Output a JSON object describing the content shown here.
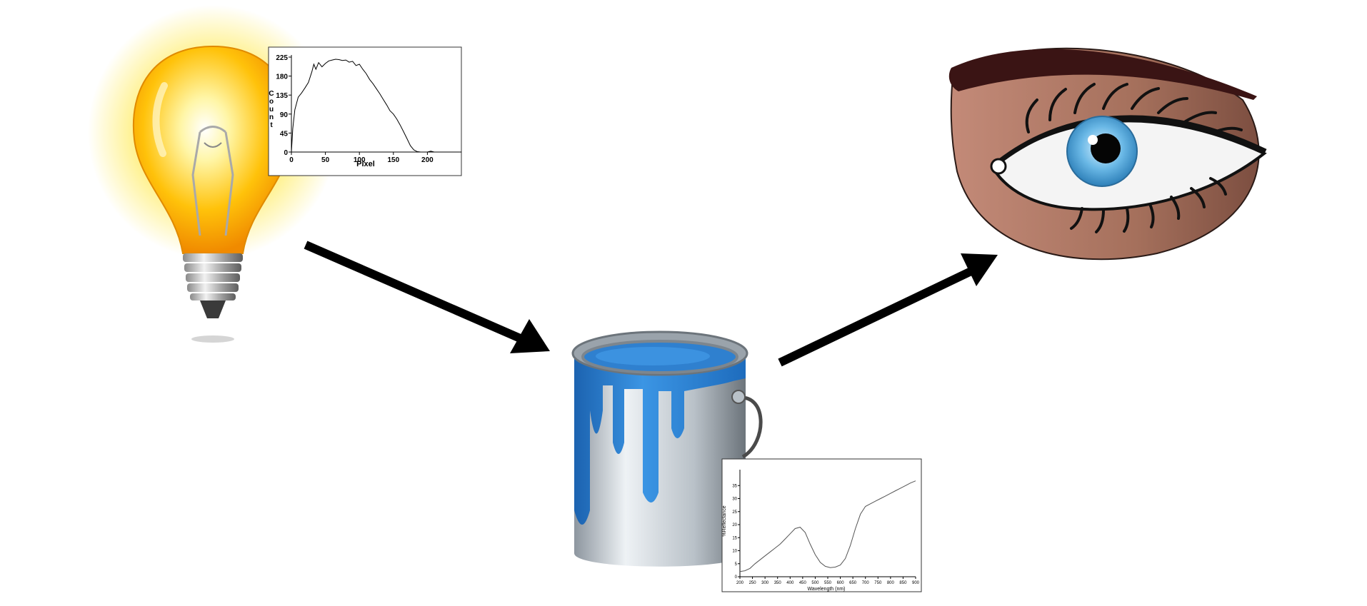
{
  "illustrations": {
    "light_source": "light-bulb-icon",
    "object": "paint-bucket-icon",
    "observer": "eye-icon"
  },
  "colors": {
    "arrow": "#000000",
    "bulb_glow": "#ffe94a",
    "bulb_glass": "#f7b500",
    "paint": "#2f86d8",
    "iris": "#5aaee0",
    "skin": "#b9826f",
    "eyebrow": "#3a1414"
  },
  "chart_data": [
    {
      "type": "line",
      "xlabel": "Pixel",
      "ylabel": "Count",
      "xlim": [
        0,
        250
      ],
      "ylim": [
        0,
        225
      ],
      "x_ticks": [
        0,
        50,
        100,
        150,
        200
      ],
      "y_ticks": [
        0,
        45,
        90,
        135,
        180,
        225
      ],
      "x": [
        0,
        2,
        5,
        10,
        15,
        20,
        25,
        30,
        33,
        36,
        40,
        45,
        50,
        55,
        60,
        65,
        70,
        75,
        80,
        85,
        90,
        95,
        100,
        105,
        110,
        115,
        120,
        125,
        130,
        135,
        140,
        145,
        150,
        155,
        160,
        165,
        170,
        175,
        180,
        185,
        190,
        195,
        200,
        205,
        210,
        215,
        220,
        225,
        230
      ],
      "y": [
        0,
        55,
        100,
        130,
        140,
        152,
        165,
        190,
        208,
        196,
        212,
        202,
        210,
        216,
        218,
        220,
        219,
        217,
        218,
        213,
        215,
        205,
        208,
        196,
        186,
        172,
        162,
        150,
        138,
        125,
        112,
        98,
        90,
        78,
        64,
        48,
        32,
        15,
        5,
        1,
        0,
        0,
        0,
        2,
        0,
        0,
        0,
        0,
        0
      ]
    },
    {
      "type": "line",
      "xlabel": "Wavelength (nm)",
      "ylabel": "%Reflectance",
      "xlim": [
        200,
        900
      ],
      "ylim": [
        0,
        40
      ],
      "x_ticks": [
        "200",
        "250",
        "300",
        "350",
        "400",
        "450",
        "500",
        "550",
        "600",
        "650",
        "700",
        "750",
        "800",
        "850",
        "900"
      ],
      "y_ticks": [
        "0",
        "5",
        "10",
        "15",
        "20",
        "25",
        "30",
        "35"
      ],
      "x": [
        200,
        220,
        240,
        260,
        280,
        300,
        320,
        340,
        360,
        380,
        400,
        420,
        440,
        460,
        480,
        500,
        520,
        540,
        560,
        580,
        600,
        620,
        640,
        660,
        680,
        700,
        720,
        740,
        760,
        780,
        800,
        820,
        840,
        860,
        880,
        900
      ],
      "y": [
        2,
        2.3,
        3.2,
        5,
        6.5,
        8,
        9.5,
        11,
        12.5,
        14.5,
        16.5,
        18.5,
        19,
        17,
        12.5,
        8.5,
        5.5,
        4,
        3.5,
        3.7,
        4.5,
        7,
        12,
        18.5,
        24,
        27,
        28,
        29,
        30,
        31,
        32,
        33,
        34,
        35,
        36,
        36.8
      ]
    }
  ]
}
